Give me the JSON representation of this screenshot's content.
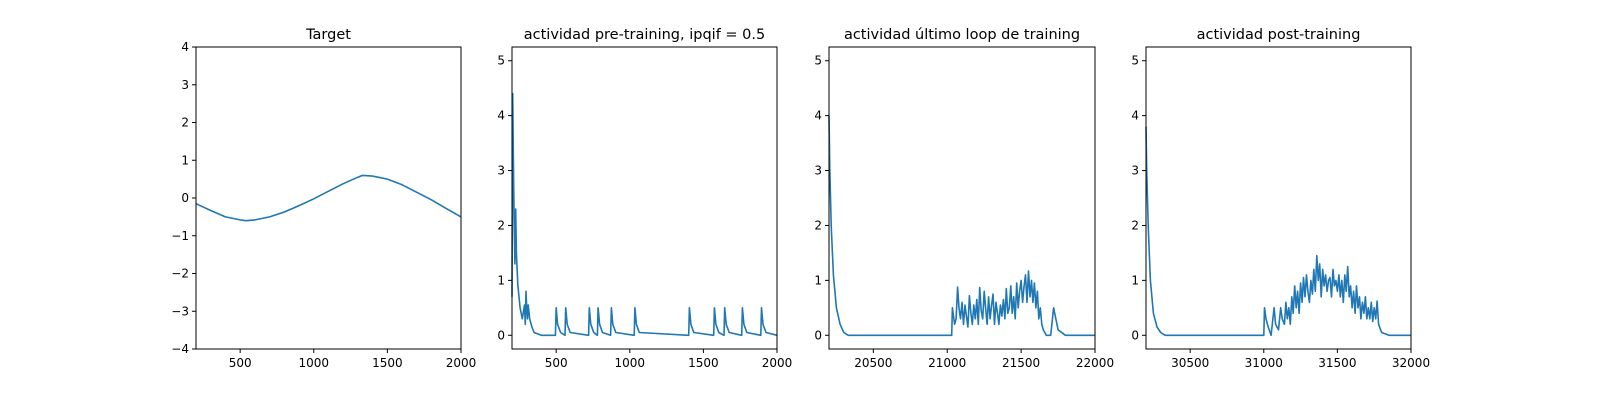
{
  "chart_data": [
    {
      "type": "line",
      "title": "Target",
      "xlim": [
        200,
        2000
      ],
      "ylim": [
        -4,
        4
      ],
      "xticks": [
        500,
        1000,
        1500,
        2000
      ],
      "yticks": [
        -4,
        -3,
        -2,
        -1,
        0,
        1,
        2,
        3,
        4
      ],
      "grid": false,
      "color": "#1f77b4",
      "series": [
        {
          "x": [
            200,
            300,
            400,
            500,
            540,
            600,
            700,
            800,
            900,
            1000,
            1100,
            1200,
            1300,
            1330,
            1400,
            1500,
            1600,
            1700,
            1800,
            1900,
            2000
          ],
          "y": [
            -0.15,
            -0.33,
            -0.5,
            -0.58,
            -0.6,
            -0.58,
            -0.5,
            -0.37,
            -0.2,
            -0.02,
            0.18,
            0.38,
            0.55,
            0.6,
            0.58,
            0.5,
            0.35,
            0.15,
            -0.05,
            -0.28,
            -0.5
          ]
        }
      ]
    },
    {
      "type": "line",
      "title": "actividad pre-training, ipqif = 0.5",
      "xlim": [
        200,
        2000
      ],
      "ylim": [
        -0.25,
        5.25
      ],
      "xticks": [
        500,
        1000,
        1500,
        2000
      ],
      "yticks": [
        0,
        1,
        2,
        3,
        4,
        5
      ],
      "grid": false,
      "color": "#1f77b4",
      "series": [
        {
          "x": [
            200,
            205,
            210,
            215,
            220,
            225,
            230,
            240,
            255,
            270,
            285,
            290,
            295,
            300,
            305,
            310,
            320,
            335,
            350,
            400,
            495,
            500,
            510,
            530,
            560,
            565,
            575,
            595,
            720,
            725,
            735,
            755,
            780,
            785,
            795,
            815,
            870,
            875,
            885,
            905,
            1030,
            1035,
            1045,
            1065,
            1400,
            1405,
            1415,
            1435,
            1570,
            1575,
            1585,
            1605,
            1640,
            1645,
            1655,
            1675,
            1760,
            1765,
            1775,
            1795,
            1890,
            1895,
            1905,
            1925,
            2000
          ],
          "y": [
            0.7,
            4.4,
            3.0,
            2.0,
            1.3,
            2.3,
            1.5,
            0.9,
            0.5,
            0.3,
            0.55,
            0.2,
            0.8,
            0.5,
            0.3,
            0.55,
            0.3,
            0.15,
            0.05,
            0.0,
            0.0,
            0.5,
            0.2,
            0.05,
            0.0,
            0.5,
            0.2,
            0.05,
            0.0,
            0.5,
            0.2,
            0.05,
            0.0,
            0.5,
            0.2,
            0.05,
            0.0,
            0.5,
            0.2,
            0.05,
            0.0,
            0.5,
            0.2,
            0.05,
            0.0,
            0.5,
            0.2,
            0.05,
            0.0,
            0.5,
            0.2,
            0.05,
            0.0,
            0.5,
            0.2,
            0.05,
            0.0,
            0.5,
            0.2,
            0.05,
            0.0,
            0.5,
            0.2,
            0.05,
            0.0
          ]
        }
      ]
    },
    {
      "type": "line",
      "title": "actividad último loop de training",
      "xlim": [
        20200,
        22000
      ],
      "ylim": [
        -0.25,
        5.25
      ],
      "xticks": [
        20500,
        21000,
        21500,
        22000
      ],
      "yticks": [
        0,
        1,
        2,
        3,
        4,
        5
      ],
      "grid": false,
      "color": "#1f77b4",
      "series": [
        {
          "x": [
            20200,
            20205,
            20215,
            20230,
            20250,
            20275,
            20300,
            20330,
            20400,
            21000,
            21030,
            21035,
            21050,
            21060,
            21070,
            21080,
            21090,
            21100,
            21110,
            21120,
            21130,
            21140,
            21150,
            21160,
            21170,
            21180,
            21190,
            21200,
            21210,
            21220,
            21230,
            21240,
            21250,
            21260,
            21270,
            21280,
            21290,
            21300,
            21310,
            21320,
            21330,
            21340,
            21350,
            21360,
            21370,
            21380,
            21390,
            21400,
            21410,
            21420,
            21430,
            21440,
            21450,
            21460,
            21470,
            21480,
            21490,
            21500,
            21510,
            21520,
            21530,
            21540,
            21550,
            21560,
            21570,
            21580,
            21590,
            21600,
            21610,
            21620,
            21630,
            21640,
            21650,
            21660,
            21670,
            21680,
            21690,
            21700,
            21720,
            21750,
            21800,
            22000
          ],
          "y": [
            4.0,
            3.1,
            2.0,
            1.1,
            0.5,
            0.2,
            0.05,
            0.0,
            0.0,
            0.0,
            0.0,
            0.5,
            0.2,
            0.3,
            0.88,
            0.5,
            0.3,
            0.6,
            0.2,
            0.55,
            0.35,
            0.15,
            0.72,
            0.4,
            0.2,
            0.55,
            0.3,
            0.65,
            0.2,
            0.87,
            0.45,
            0.3,
            0.8,
            0.5,
            0.2,
            0.7,
            0.3,
            0.55,
            0.75,
            0.2,
            0.6,
            0.4,
            0.2,
            0.55,
            0.35,
            0.65,
            0.3,
            0.85,
            0.4,
            0.5,
            0.9,
            0.4,
            0.7,
            0.3,
            0.95,
            0.5,
            0.8,
            1.0,
            0.6,
            0.9,
            1.1,
            0.6,
            1.17,
            0.7,
            1.0,
            0.6,
            0.95,
            0.5,
            0.8,
            0.3,
            0.5,
            0.2,
            0.1,
            0.05,
            0.0,
            0.0,
            0.0,
            0.0,
            0.5,
            0.1,
            0.0,
            0.0
          ]
        }
      ]
    },
    {
      "type": "line",
      "title": "actividad post-training",
      "xlim": [
        30200,
        32000
      ],
      "ylim": [
        -0.25,
        5.25
      ],
      "xticks": [
        30500,
        31000,
        31500,
        32000
      ],
      "yticks": [
        0,
        1,
        2,
        3,
        4,
        5
      ],
      "grid": false,
      "color": "#1f77b4",
      "series": [
        {
          "x": [
            30200,
            30205,
            30215,
            30230,
            30250,
            30275,
            30300,
            30330,
            30400,
            31000,
            31005,
            31015,
            31030,
            31050,
            31070,
            31080,
            31100,
            31115,
            31125,
            31140,
            31150,
            31160,
            31170,
            31180,
            31190,
            31200,
            31210,
            31220,
            31230,
            31240,
            31250,
            31260,
            31270,
            31280,
            31290,
            31300,
            31310,
            31320,
            31330,
            31340,
            31350,
            31360,
            31370,
            31380,
            31390,
            31400,
            31410,
            31420,
            31430,
            31440,
            31450,
            31460,
            31470,
            31480,
            31490,
            31500,
            31510,
            31520,
            31530,
            31540,
            31550,
            31560,
            31570,
            31580,
            31590,
            31600,
            31610,
            31620,
            31630,
            31640,
            31650,
            31660,
            31670,
            31680,
            31690,
            31700,
            31710,
            31720,
            31730,
            31740,
            31750,
            31760,
            31770,
            31780,
            31800,
            31850,
            32000
          ],
          "y": [
            3.8,
            3.0,
            2.0,
            1.0,
            0.4,
            0.15,
            0.05,
            0.0,
            0.0,
            0.0,
            0.5,
            0.3,
            0.15,
            0.0,
            0.5,
            0.2,
            0.1,
            0.5,
            0.3,
            0.2,
            0.6,
            0.3,
            0.5,
            0.2,
            0.7,
            0.4,
            0.9,
            0.5,
            0.8,
            0.4,
            0.95,
            0.6,
            1.05,
            0.7,
            1.1,
            0.8,
            0.6,
            1.0,
            0.75,
            1.2,
            0.8,
            1.45,
            1.0,
            1.3,
            0.7,
            1.2,
            0.9,
            1.1,
            0.8,
            1.0,
            1.05,
            0.7,
            1.2,
            0.9,
            1.0,
            0.8,
            1.1,
            0.7,
            1.0,
            0.6,
            1.1,
            0.8,
            1.25,
            0.7,
            0.9,
            0.5,
            0.8,
            0.4,
            0.9,
            0.5,
            0.7,
            0.3,
            0.6,
            0.4,
            0.7,
            0.3,
            0.5,
            0.3,
            0.6,
            0.25,
            0.5,
            0.3,
            0.62,
            0.2,
            0.05,
            0.0,
            0.0
          ]
        }
      ]
    }
  ]
}
